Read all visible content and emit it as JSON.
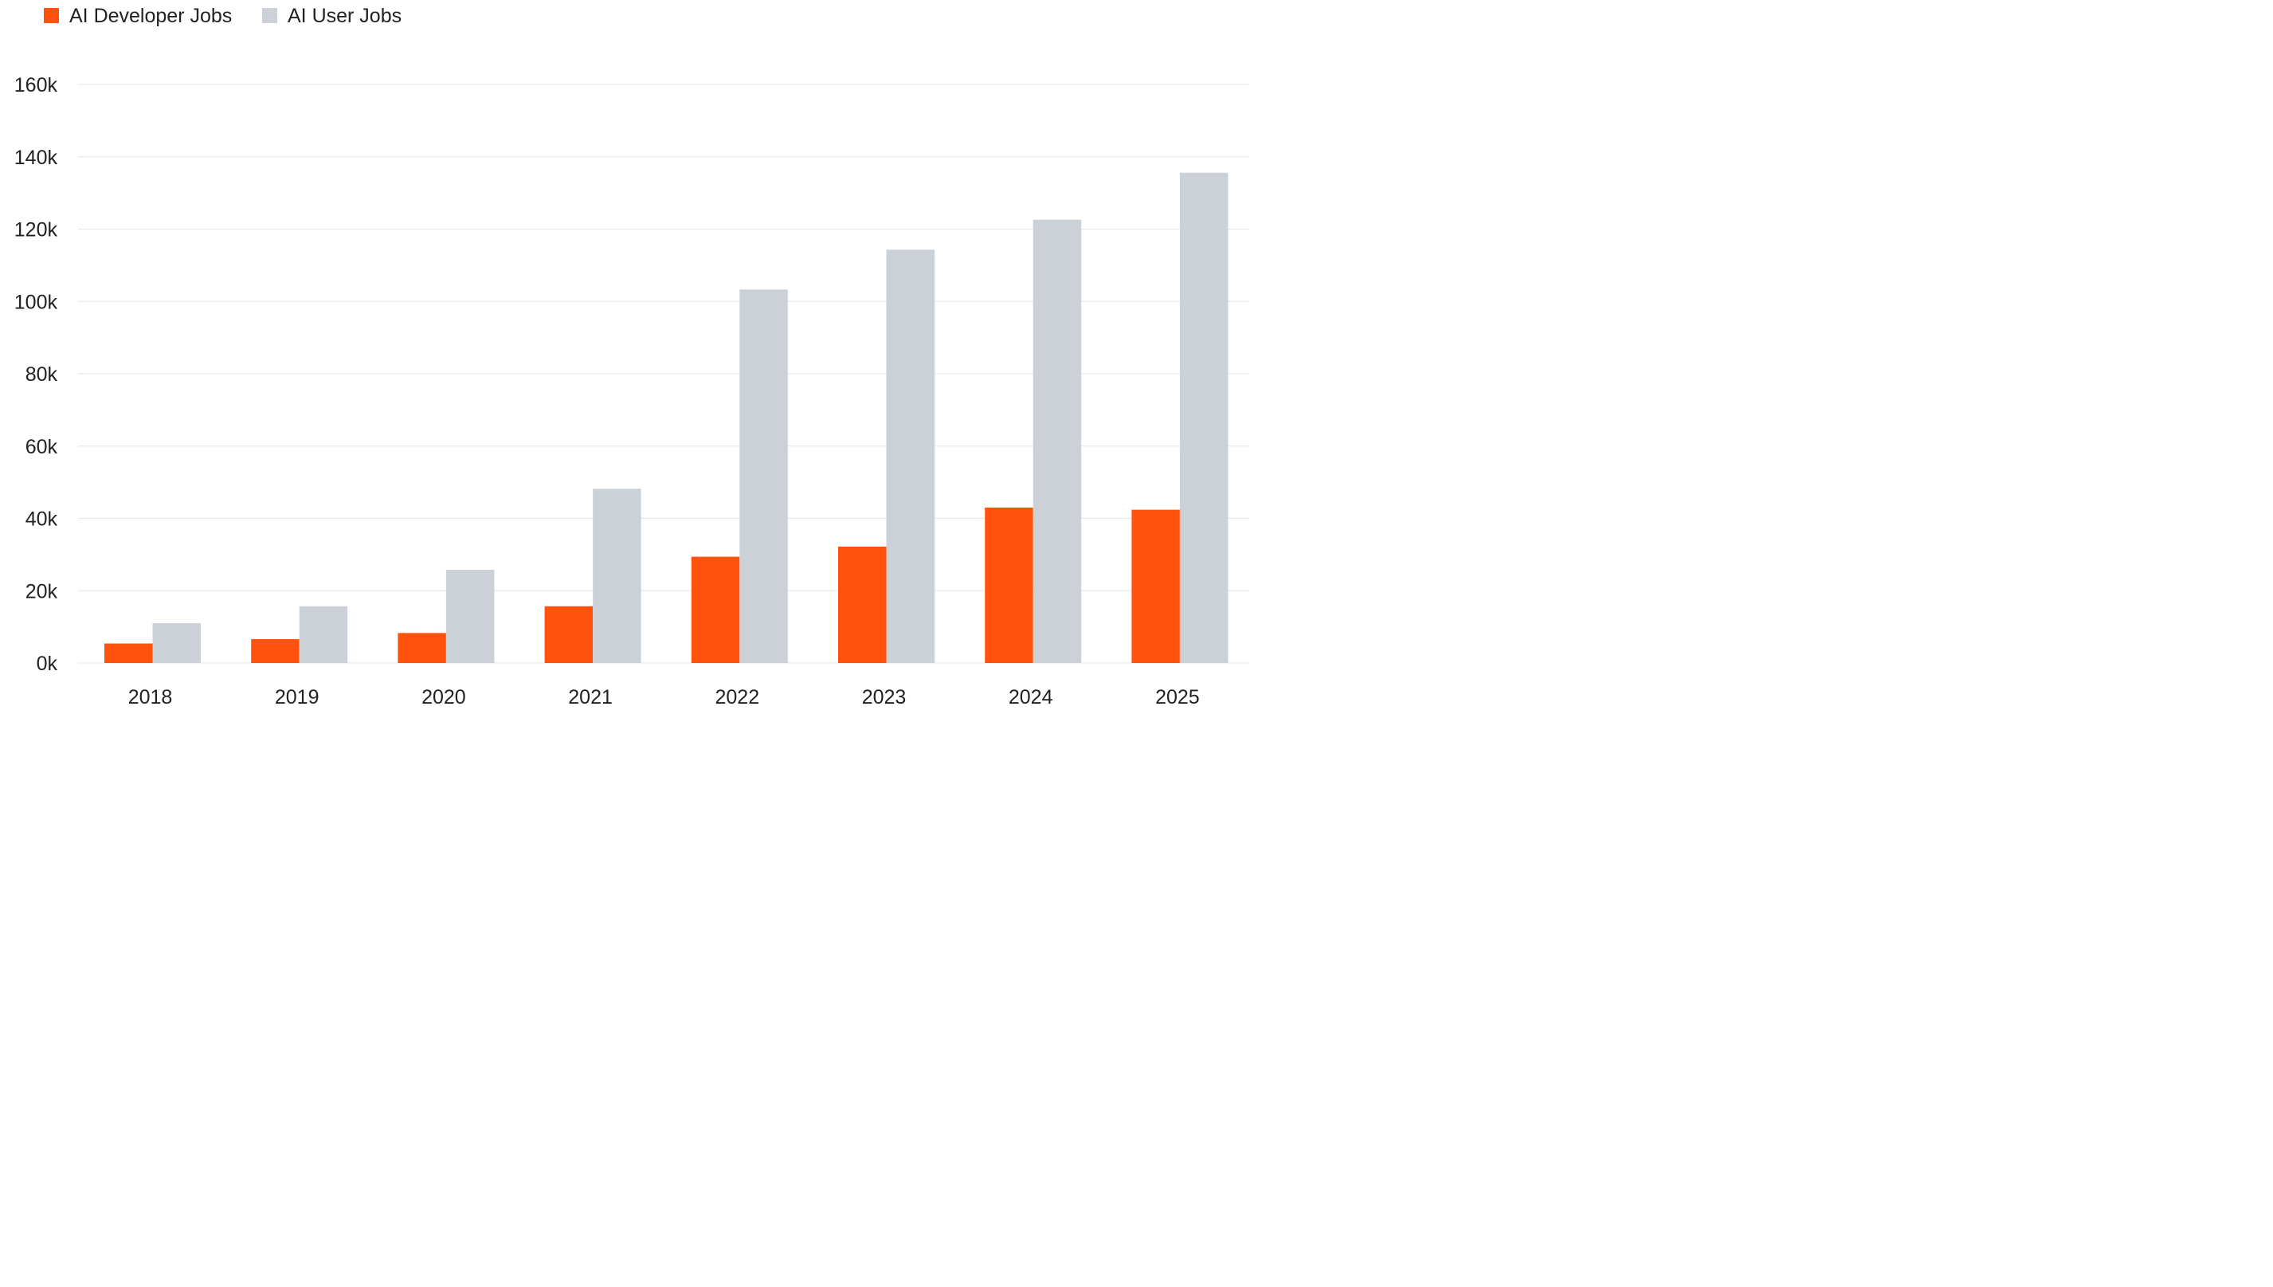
{
  "chart_data": {
    "type": "bar",
    "categories": [
      "2018",
      "2019",
      "2020",
      "2021",
      "2022",
      "2023",
      "2024",
      "2025"
    ],
    "series": [
      {
        "name": "AI Developer Jobs",
        "color": "#ff530d",
        "values": [
          5400,
          6600,
          8300,
          15700,
          29400,
          32200,
          43000,
          42400
        ]
      },
      {
        "name": "AI User Jobs",
        "color": "#ccd1d8",
        "values": [
          11000,
          15700,
          25800,
          48200,
          103300,
          114300,
          122600,
          135600
        ]
      }
    ],
    "y_ticks": [
      "0k",
      "20k",
      "40k",
      "60k",
      "80k",
      "100k",
      "120k",
      "140k",
      "160k"
    ],
    "ylim": [
      0,
      160000
    ],
    "grid": true,
    "legend_position": "top-left",
    "title": "",
    "xlabel": "",
    "ylabel": ""
  }
}
